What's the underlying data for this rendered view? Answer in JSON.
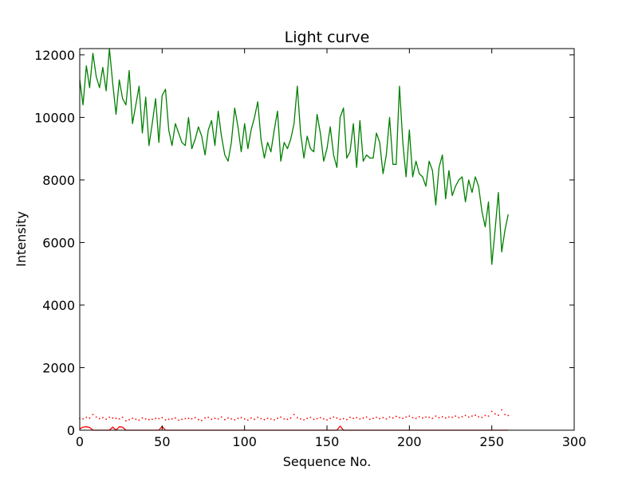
{
  "chart_data": {
    "type": "line",
    "title": "Light curve",
    "xlabel": "Sequence No.",
    "ylabel": "Intensity",
    "xlim": [
      0,
      300
    ],
    "ylim": [
      0,
      12200
    ],
    "xticks": [
      0,
      50,
      100,
      150,
      200,
      250,
      300
    ],
    "yticks": [
      0,
      2000,
      4000,
      6000,
      8000,
      10000,
      12000
    ],
    "grid": false,
    "legend": "none",
    "series": [
      {
        "color": "#008000",
        "style": "solid",
        "x": [
          0,
          2,
          4,
          6,
          8,
          10,
          12,
          14,
          16,
          18,
          20,
          22,
          24,
          26,
          28,
          30,
          32,
          34,
          36,
          38,
          40,
          42,
          44,
          46,
          48,
          50,
          52,
          54,
          56,
          58,
          60,
          62,
          64,
          66,
          68,
          70,
          72,
          74,
          76,
          78,
          80,
          82,
          84,
          86,
          88,
          90,
          92,
          94,
          96,
          98,
          100,
          102,
          104,
          106,
          108,
          110,
          112,
          114,
          116,
          118,
          120,
          122,
          124,
          126,
          128,
          130,
          132,
          134,
          136,
          138,
          140,
          142,
          144,
          146,
          148,
          150,
          152,
          154,
          156,
          158,
          160,
          162,
          164,
          166,
          168,
          170,
          172,
          174,
          176,
          178,
          180,
          182,
          184,
          186,
          188,
          190,
          192,
          194,
          196,
          198,
          200,
          202,
          204,
          206,
          208,
          210,
          212,
          214,
          216,
          218,
          220,
          222,
          224,
          226,
          228,
          230,
          232,
          234,
          236,
          238,
          240,
          242,
          244,
          246,
          248,
          250,
          252,
          254,
          256,
          258,
          260
        ],
        "y": [
          11200,
          10400,
          11650,
          10950,
          12050,
          11300,
          10950,
          11600,
          10850,
          12200,
          11100,
          10100,
          11200,
          10600,
          10400,
          11500,
          9800,
          10400,
          11000,
          9500,
          10650,
          9100,
          9800,
          10600,
          9200,
          10700,
          10900,
          9600,
          9100,
          9800,
          9500,
          9200,
          9100,
          10000,
          9000,
          9300,
          9700,
          9400,
          8800,
          9600,
          9900,
          9100,
          10200,
          9400,
          8800,
          8600,
          9200,
          10300,
          9700,
          8900,
          9800,
          9000,
          9600,
          10000,
          10500,
          9300,
          8700,
          9200,
          8900,
          9600,
          10200,
          8600,
          9200,
          9000,
          9300,
          9800,
          11000,
          9500,
          8700,
          9400,
          9000,
          8900,
          10100,
          9500,
          8600,
          9000,
          9700,
          8800,
          8400,
          10000,
          10300,
          8700,
          8900,
          9800,
          8400,
          9900,
          8600,
          8800,
          8700,
          8700,
          9500,
          9200,
          8200,
          8800,
          10000,
          8500,
          8500,
          11000,
          9200,
          8100,
          9600,
          8100,
          8600,
          8200,
          8100,
          7800,
          8600,
          8300,
          7200,
          8400,
          8800,
          7400,
          8300,
          7500,
          7800,
          8000,
          8100,
          7300,
          8000,
          7600,
          8100,
          7800,
          7000,
          6500,
          7300,
          5300,
          6400,
          7600,
          5700,
          6400,
          6900
        ]
      },
      {
        "color": "#ff0000",
        "style": "dotted",
        "x": [
          0,
          2,
          4,
          6,
          8,
          10,
          12,
          14,
          16,
          18,
          20,
          22,
          24,
          26,
          28,
          30,
          32,
          34,
          36,
          38,
          40,
          42,
          44,
          46,
          48,
          50,
          52,
          54,
          56,
          58,
          60,
          62,
          64,
          66,
          68,
          70,
          72,
          74,
          76,
          78,
          80,
          82,
          84,
          86,
          88,
          90,
          92,
          94,
          96,
          98,
          100,
          102,
          104,
          106,
          108,
          110,
          112,
          114,
          116,
          118,
          120,
          122,
          124,
          126,
          128,
          130,
          132,
          134,
          136,
          138,
          140,
          142,
          144,
          146,
          148,
          150,
          152,
          154,
          156,
          158,
          160,
          162,
          164,
          166,
          168,
          170,
          172,
          174,
          176,
          178,
          180,
          182,
          184,
          186,
          188,
          190,
          192,
          194,
          196,
          198,
          200,
          202,
          204,
          206,
          208,
          210,
          212,
          214,
          216,
          218,
          220,
          222,
          224,
          226,
          228,
          230,
          232,
          234,
          236,
          238,
          240,
          242,
          244,
          246,
          248,
          250,
          252,
          254,
          256,
          258,
          260
        ],
        "y": [
          380,
          360,
          410,
          390,
          500,
          420,
          370,
          400,
          350,
          410,
          390,
          380,
          360,
          410,
          300,
          340,
          380,
          350,
          320,
          390,
          360,
          340,
          350,
          380,
          370,
          400,
          330,
          350,
          360,
          390,
          320,
          350,
          370,
          380,
          360,
          400,
          340,
          310,
          390,
          410,
          350,
          380,
          360,
          420,
          340,
          390,
          360,
          330,
          380,
          400,
          360,
          320,
          390,
          350,
          410,
          370,
          340,
          380,
          360,
          330,
          380,
          420,
          360,
          350,
          390,
          500,
          400,
          360,
          330,
          380,
          410,
          350,
          370,
          400,
          360,
          330,
          380,
          420,
          390,
          350,
          370,
          340,
          410,
          380,
          400,
          360,
          390,
          420,
          350,
          380,
          410,
          370,
          400,
          360,
          420,
          390,
          440,
          400,
          380,
          420,
          450,
          400,
          380,
          430,
          390,
          420,
          410,
          380,
          450,
          400,
          430,
          390,
          420,
          410,
          450,
          400,
          430,
          470,
          420,
          450,
          480,
          430,
          410,
          470,
          450,
          600,
          520,
          480,
          650,
          500,
          470
        ]
      },
      {
        "color": "#ff0000",
        "style": "solid",
        "x": [
          0,
          2,
          4,
          6,
          8,
          10,
          12,
          14,
          16,
          18,
          20,
          22,
          24,
          26,
          28,
          30,
          32,
          34,
          36,
          38,
          40,
          42,
          44,
          46,
          48,
          50,
          52,
          54,
          56,
          58,
          60,
          62,
          64,
          66,
          68,
          70,
          72,
          74,
          76,
          78,
          80,
          82,
          84,
          86,
          88,
          90,
          92,
          94,
          96,
          98,
          100,
          102,
          104,
          106,
          108,
          110,
          112,
          114,
          116,
          118,
          120,
          122,
          124,
          126,
          128,
          130,
          132,
          134,
          136,
          138,
          140,
          142,
          144,
          146,
          148,
          150,
          152,
          154,
          156,
          158,
          160,
          162,
          164,
          166,
          168,
          170,
          172,
          174,
          176,
          178,
          180,
          182,
          184,
          186,
          188,
          190,
          192,
          194,
          196,
          198,
          200,
          202,
          204,
          206,
          208,
          210,
          212,
          214,
          216,
          218,
          220,
          222,
          224,
          226,
          228,
          230,
          232,
          234,
          236,
          238,
          240,
          242,
          244,
          246,
          248,
          250,
          252,
          254,
          256,
          258,
          260
        ],
        "y": [
          40,
          100,
          110,
          90,
          0,
          0,
          0,
          0,
          0,
          0,
          100,
          0,
          110,
          100,
          0,
          0,
          0,
          0,
          0,
          0,
          0,
          0,
          0,
          0,
          0,
          120,
          0,
          0,
          0,
          0,
          0,
          0,
          0,
          0,
          0,
          0,
          0,
          0,
          0,
          0,
          0,
          0,
          0,
          0,
          0,
          0,
          0,
          0,
          0,
          0,
          0,
          0,
          0,
          0,
          0,
          0,
          0,
          0,
          0,
          0,
          0,
          0,
          0,
          0,
          0,
          0,
          0,
          0,
          0,
          0,
          0,
          0,
          0,
          0,
          0,
          0,
          0,
          0,
          0,
          130,
          0,
          0,
          0,
          0,
          0,
          0,
          0,
          0,
          0,
          0,
          0,
          0,
          0,
          0,
          0,
          0,
          0,
          0,
          0,
          0,
          0,
          0,
          0,
          0,
          0,
          0,
          0,
          0,
          0,
          0,
          0,
          0,
          0,
          0,
          0,
          0,
          0,
          0,
          0,
          0,
          0,
          0,
          0,
          0,
          0,
          0,
          0,
          0,
          0,
          0,
          0
        ]
      }
    ]
  }
}
